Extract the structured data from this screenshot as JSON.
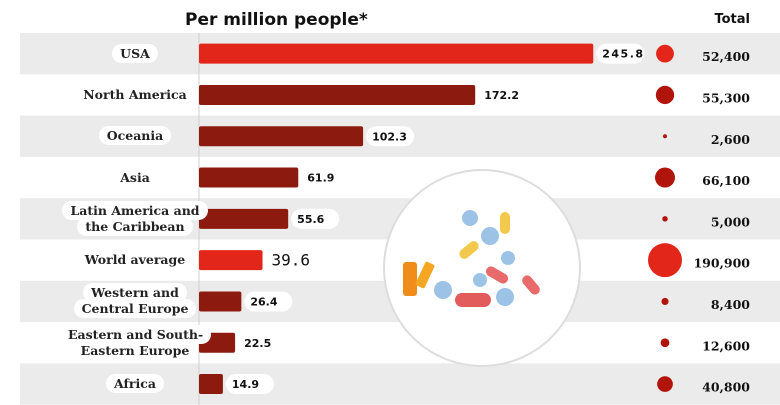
{
  "chart_data": {
    "type": "bar",
    "orientation": "horizontal",
    "title": "Per million people*",
    "totals_title": "Total",
    "categories": [
      "USA",
      "North America",
      "Oceania",
      "Asia",
      "Latin America and the Caribbean",
      "World average",
      "Western and Central Europe",
      "Eastern and South-Eastern Europe",
      "Africa"
    ],
    "values": [
      245.8,
      172.2,
      102.3,
      61.9,
      55.6,
      39.6,
      26.4,
      22.5,
      14.9
    ],
    "colors": [
      "#e3261a",
      "#8c1a0e",
      "#8c1a0e",
      "#8c1a0e",
      "#8c1a0e",
      "#e3261a",
      "#8c1a0e",
      "#8c1a0e",
      "#8c1a0e"
    ],
    "xlim": [
      0,
      250
    ],
    "totals": {
      "values": [
        52400,
        55300,
        2600,
        66100,
        5000,
        190900,
        8400,
        12600,
        40800
      ],
      "value_labels": [
        "52,400",
        "55,300",
        "2,600",
        "66,100",
        "5,000",
        "190,900",
        "8,400",
        "12,600",
        "40,800"
      ],
      "colors": [
        "#e3261a",
        "#b0140a",
        "#b0140a",
        "#b0140a",
        "#b0140a",
        "#e3261a",
        "#b0140a",
        "#b0140a",
        "#b0140a"
      ]
    }
  }
}
